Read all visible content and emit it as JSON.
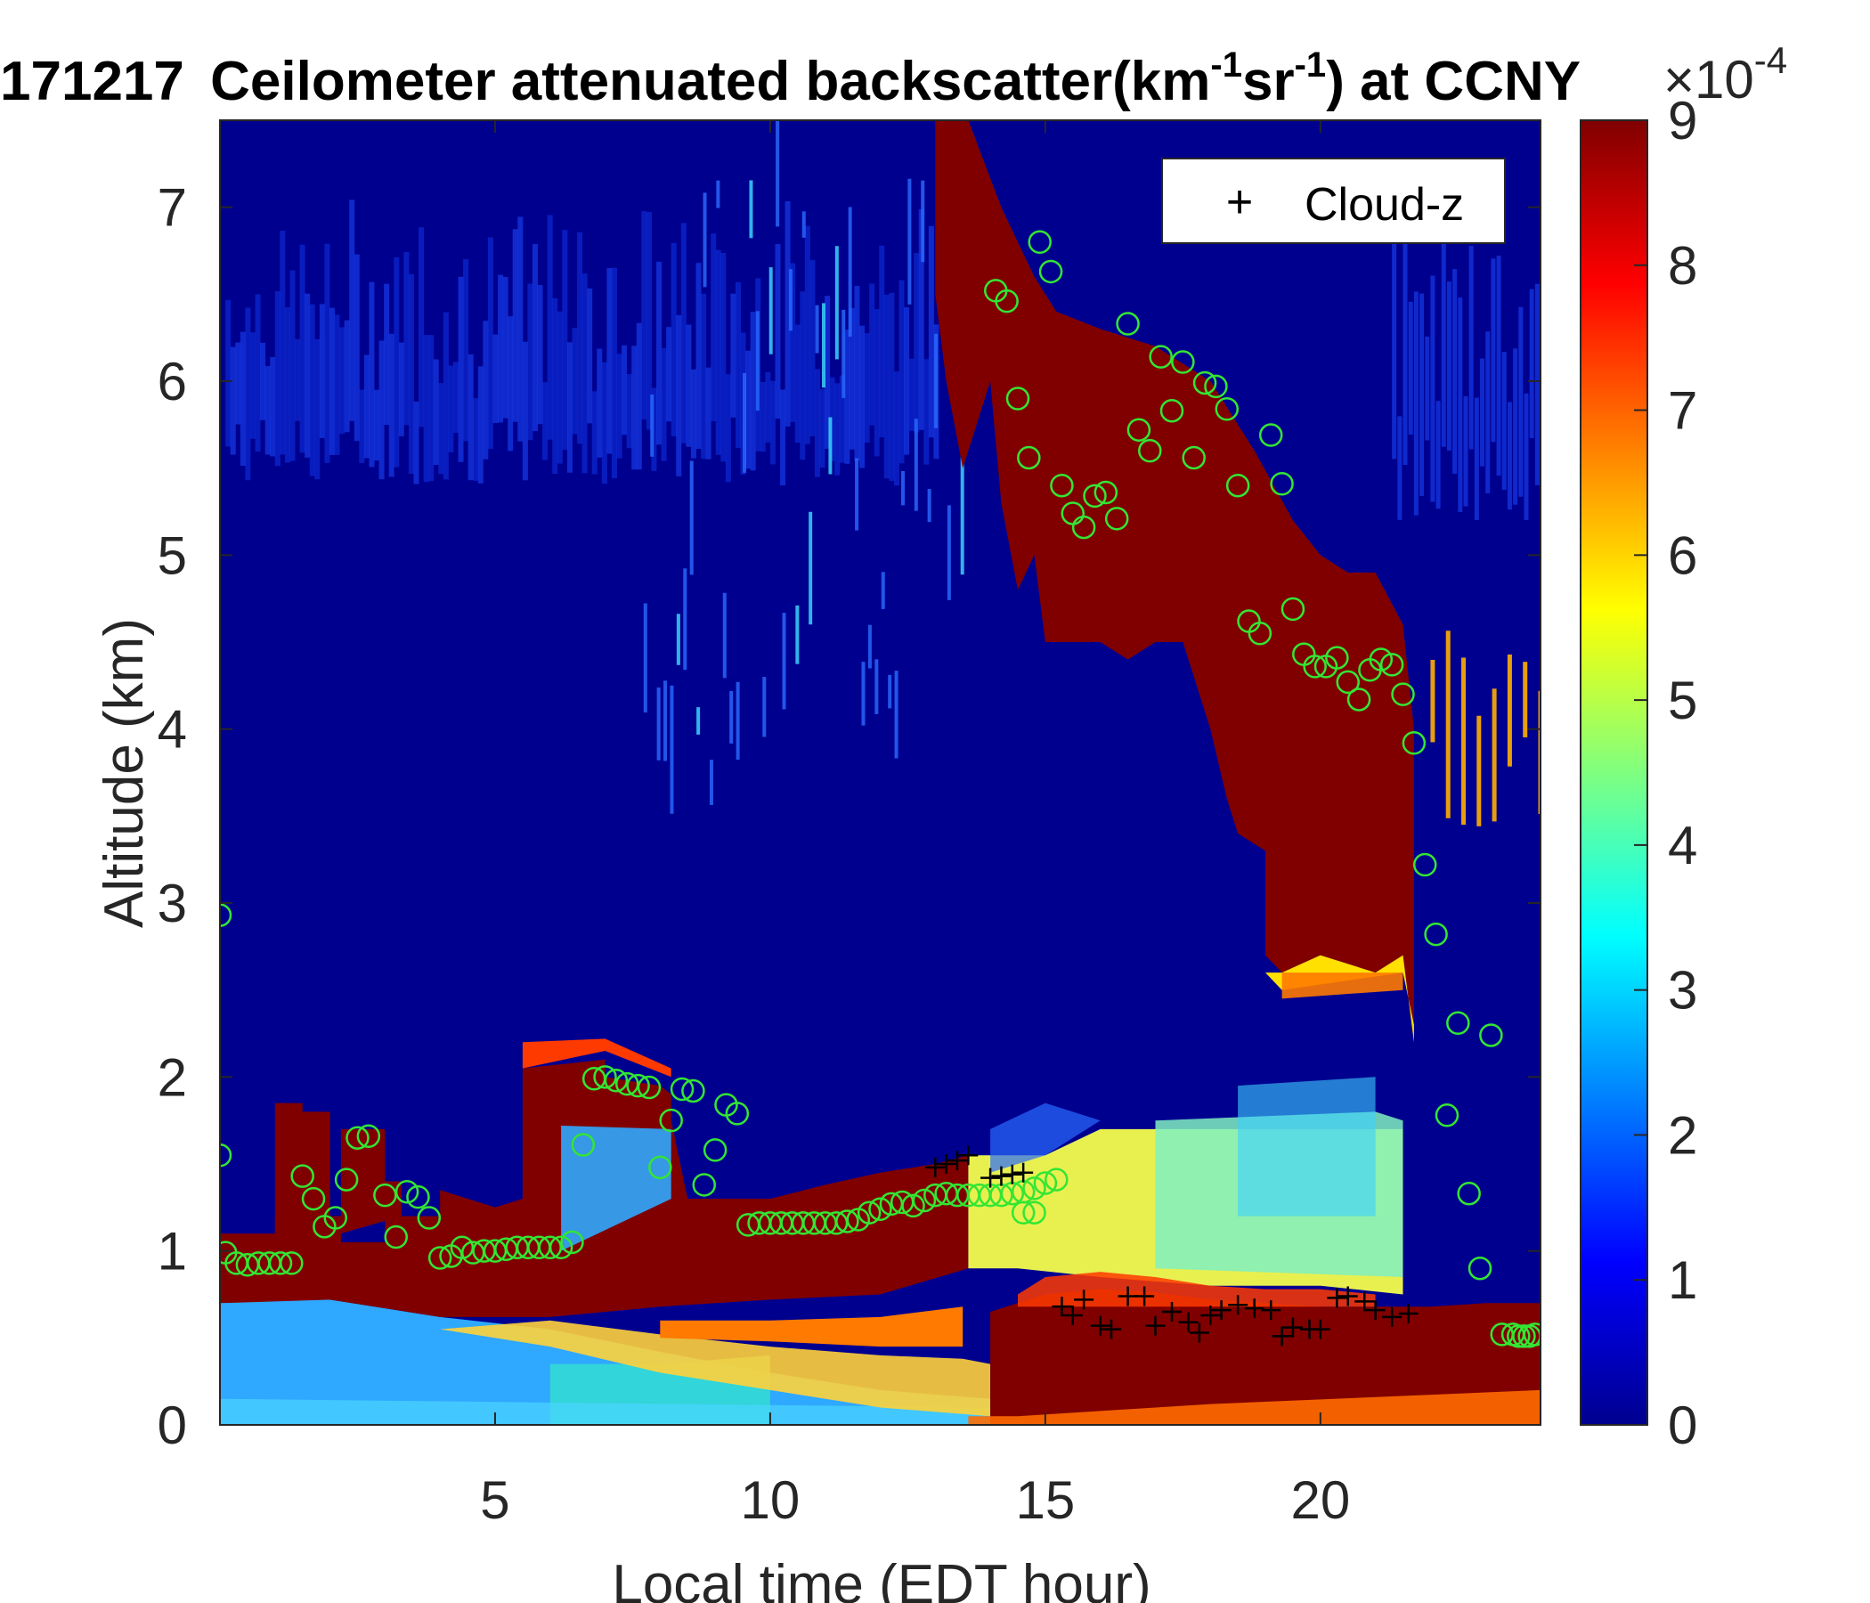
{
  "chart_data": {
    "type": "heatmap",
    "title": "171217 Ceilometer attenuated backscatter(km^{-1}sr^{-1}) at CCNY",
    "title_parts": {
      "date": "171217",
      "main": "Ceilometer attenuated backscatter(km",
      "exp1": "-1",
      "mid": "sr",
      "exp2": "-1",
      "tail": ") at CCNY"
    },
    "xlabel": "Local time (EDT hour)",
    "ylabel": "Altitude (km)",
    "xlim": [
      0,
      24
    ],
    "ylim": [
      0,
      7.5
    ],
    "xticks": [
      5,
      10,
      15,
      20
    ],
    "yticks": [
      0,
      1,
      2,
      3,
      4,
      5,
      6,
      7
    ],
    "colorbar": {
      "colormap": "jet",
      "range": [
        0,
        9
      ],
      "ticks": [
        0,
        1,
        2,
        3,
        4,
        5,
        6,
        7,
        8,
        9
      ],
      "exponent_label": "×10",
      "exponent_power": "-4"
    },
    "legend": {
      "placement": "top-right",
      "entries": [
        {
          "marker": "+",
          "label": "Cloud-z"
        }
      ]
    },
    "cloud_z": [
      {
        "x": 13.0,
        "y": 1.48
      },
      {
        "x": 13.2,
        "y": 1.5
      },
      {
        "x": 13.4,
        "y": 1.52
      },
      {
        "x": 13.6,
        "y": 1.55
      },
      {
        "x": 14.0,
        "y": 1.42
      },
      {
        "x": 14.2,
        "y": 1.43
      },
      {
        "x": 14.4,
        "y": 1.44
      },
      {
        "x": 14.6,
        "y": 1.45
      },
      {
        "x": 15.3,
        "y": 0.68
      },
      {
        "x": 15.5,
        "y": 0.63
      },
      {
        "x": 15.7,
        "y": 0.72
      },
      {
        "x": 16.0,
        "y": 0.57
      },
      {
        "x": 16.2,
        "y": 0.55
      },
      {
        "x": 16.5,
        "y": 0.74
      },
      {
        "x": 16.8,
        "y": 0.74
      },
      {
        "x": 17.0,
        "y": 0.57
      },
      {
        "x": 17.3,
        "y": 0.65
      },
      {
        "x": 17.6,
        "y": 0.59
      },
      {
        "x": 17.8,
        "y": 0.53
      },
      {
        "x": 18.0,
        "y": 0.63
      },
      {
        "x": 18.2,
        "y": 0.66
      },
      {
        "x": 18.5,
        "y": 0.69
      },
      {
        "x": 18.8,
        "y": 0.67
      },
      {
        "x": 19.1,
        "y": 0.66
      },
      {
        "x": 19.3,
        "y": 0.51
      },
      {
        "x": 19.5,
        "y": 0.56
      },
      {
        "x": 19.8,
        "y": 0.55
      },
      {
        "x": 20.0,
        "y": 0.55
      },
      {
        "x": 20.3,
        "y": 0.73
      },
      {
        "x": 20.5,
        "y": 0.74
      },
      {
        "x": 20.8,
        "y": 0.71
      },
      {
        "x": 21.0,
        "y": 0.66
      },
      {
        "x": 21.3,
        "y": 0.62
      },
      {
        "x": 21.6,
        "y": 0.64
      }
    ],
    "circles": [
      {
        "x": 0.1,
        "y": 0.99
      },
      {
        "x": 0.3,
        "y": 0.93
      },
      {
        "x": 0.5,
        "y": 0.92
      },
      {
        "x": 0.7,
        "y": 0.93
      },
      {
        "x": 0.9,
        "y": 0.93
      },
      {
        "x": 1.1,
        "y": 0.93
      },
      {
        "x": 1.3,
        "y": 0.93
      },
      {
        "x": 1.5,
        "y": 1.43
      },
      {
        "x": 1.7,
        "y": 1.3
      },
      {
        "x": 1.9,
        "y": 1.14
      },
      {
        "x": 2.1,
        "y": 1.19
      },
      {
        "x": 2.3,
        "y": 1.41
      },
      {
        "x": 2.5,
        "y": 1.65
      },
      {
        "x": 2.7,
        "y": 1.66
      },
      {
        "x": 3.0,
        "y": 1.32
      },
      {
        "x": 3.2,
        "y": 1.08
      },
      {
        "x": 3.4,
        "y": 1.34
      },
      {
        "x": 3.6,
        "y": 1.31
      },
      {
        "x": 3.8,
        "y": 1.19
      },
      {
        "x": 4.0,
        "y": 0.96
      },
      {
        "x": 4.2,
        "y": 0.97
      },
      {
        "x": 4.4,
        "y": 1.02
      },
      {
        "x": 4.6,
        "y": 0.99
      },
      {
        "x": 4.8,
        "y": 1.0
      },
      {
        "x": 5.0,
        "y": 1.0
      },
      {
        "x": 5.2,
        "y": 1.01
      },
      {
        "x": 5.4,
        "y": 1.02
      },
      {
        "x": 5.6,
        "y": 1.02
      },
      {
        "x": 5.8,
        "y": 1.02
      },
      {
        "x": 6.0,
        "y": 1.02
      },
      {
        "x": 6.2,
        "y": 1.02
      },
      {
        "x": 6.4,
        "y": 1.05
      },
      {
        "x": 6.6,
        "y": 1.61
      },
      {
        "x": 6.8,
        "y": 1.99
      },
      {
        "x": 7.0,
        "y": 2.0
      },
      {
        "x": 7.2,
        "y": 1.98
      },
      {
        "x": 7.4,
        "y": 1.96
      },
      {
        "x": 7.6,
        "y": 1.95
      },
      {
        "x": 7.8,
        "y": 1.94
      },
      {
        "x": 8.0,
        "y": 1.48
      },
      {
        "x": 8.2,
        "y": 1.75
      },
      {
        "x": 8.4,
        "y": 1.93
      },
      {
        "x": 8.6,
        "y": 1.92
      },
      {
        "x": 8.8,
        "y": 1.38
      },
      {
        "x": 9.0,
        "y": 1.58
      },
      {
        "x": 9.2,
        "y": 1.84
      },
      {
        "x": 9.4,
        "y": 1.79
      },
      {
        "x": 9.6,
        "y": 1.15
      },
      {
        "x": 9.8,
        "y": 1.16
      },
      {
        "x": 10.0,
        "y": 1.16
      },
      {
        "x": 10.2,
        "y": 1.16
      },
      {
        "x": 10.4,
        "y": 1.16
      },
      {
        "x": 10.6,
        "y": 1.16
      },
      {
        "x": 10.8,
        "y": 1.16
      },
      {
        "x": 11.0,
        "y": 1.16
      },
      {
        "x": 11.2,
        "y": 1.16
      },
      {
        "x": 11.4,
        "y": 1.17
      },
      {
        "x": 11.6,
        "y": 1.18
      },
      {
        "x": 11.8,
        "y": 1.22
      },
      {
        "x": 12.0,
        "y": 1.24
      },
      {
        "x": 12.2,
        "y": 1.27
      },
      {
        "x": 12.4,
        "y": 1.28
      },
      {
        "x": 12.6,
        "y": 1.26
      },
      {
        "x": 12.8,
        "y": 1.29
      },
      {
        "x": 13.0,
        "y": 1.32
      },
      {
        "x": 13.2,
        "y": 1.33
      },
      {
        "x": 13.4,
        "y": 1.32
      },
      {
        "x": 13.6,
        "y": 1.32
      },
      {
        "x": 13.8,
        "y": 1.32
      },
      {
        "x": 14.0,
        "y": 1.32
      },
      {
        "x": 14.2,
        "y": 1.32
      },
      {
        "x": 14.4,
        "y": 1.33
      },
      {
        "x": 14.6,
        "y": 1.34
      },
      {
        "x": 14.8,
        "y": 1.36
      },
      {
        "x": 15.0,
        "y": 1.39
      },
      {
        "x": 15.2,
        "y": 1.41
      },
      {
        "x": 14.6,
        "y": 1.22
      },
      {
        "x": 14.8,
        "y": 1.22
      },
      {
        "x": 14.1,
        "y": 6.52
      },
      {
        "x": 14.3,
        "y": 6.46
      },
      {
        "x": 14.5,
        "y": 5.9
      },
      {
        "x": 14.7,
        "y": 5.56
      },
      {
        "x": 14.9,
        "y": 6.8
      },
      {
        "x": 15.1,
        "y": 6.63
      },
      {
        "x": 15.3,
        "y": 5.4
      },
      {
        "x": 15.5,
        "y": 5.24
      },
      {
        "x": 15.7,
        "y": 5.16
      },
      {
        "x": 15.9,
        "y": 5.34
      },
      {
        "x": 16.1,
        "y": 5.36
      },
      {
        "x": 16.3,
        "y": 5.21
      },
      {
        "x": 16.5,
        "y": 6.33
      },
      {
        "x": 16.7,
        "y": 5.72
      },
      {
        "x": 16.9,
        "y": 5.6
      },
      {
        "x": 17.1,
        "y": 6.14
      },
      {
        "x": 17.3,
        "y": 5.83
      },
      {
        "x": 17.5,
        "y": 6.11
      },
      {
        "x": 17.7,
        "y": 5.56
      },
      {
        "x": 17.9,
        "y": 5.99
      },
      {
        "x": 18.1,
        "y": 5.97
      },
      {
        "x": 18.3,
        "y": 5.84
      },
      {
        "x": 18.5,
        "y": 5.4
      },
      {
        "x": 18.7,
        "y": 4.62
      },
      {
        "x": 18.9,
        "y": 4.55
      },
      {
        "x": 19.1,
        "y": 5.69
      },
      {
        "x": 19.3,
        "y": 5.41
      },
      {
        "x": 19.5,
        "y": 4.69
      },
      {
        "x": 19.7,
        "y": 4.43
      },
      {
        "x": 19.9,
        "y": 4.36
      },
      {
        "x": 20.1,
        "y": 4.36
      },
      {
        "x": 20.3,
        "y": 4.41
      },
      {
        "x": 20.5,
        "y": 4.27
      },
      {
        "x": 20.7,
        "y": 4.17
      },
      {
        "x": 20.9,
        "y": 4.34
      },
      {
        "x": 21.1,
        "y": 4.4
      },
      {
        "x": 21.3,
        "y": 4.37
      },
      {
        "x": 21.5,
        "y": 4.2
      },
      {
        "x": 21.7,
        "y": 3.92
      },
      {
        "x": 21.9,
        "y": 3.22
      },
      {
        "x": 22.1,
        "y": 2.82
      },
      {
        "x": 22.3,
        "y": 1.78
      },
      {
        "x": 22.5,
        "y": 2.31
      },
      {
        "x": 22.7,
        "y": 1.33
      },
      {
        "x": 22.9,
        "y": 0.9
      },
      {
        "x": 23.1,
        "y": 2.24
      },
      {
        "x": 23.3,
        "y": 0.52
      },
      {
        "x": 23.5,
        "y": 0.52
      },
      {
        "x": 23.6,
        "y": 0.51
      },
      {
        "x": 23.7,
        "y": 0.51
      },
      {
        "x": 23.8,
        "y": 0.51
      },
      {
        "x": 23.9,
        "y": 0.52
      },
      {
        "x": 0.0,
        "y": 1.55
      },
      {
        "x": 0.0,
        "y": 2.93
      }
    ]
  },
  "colors": {
    "background": "#00008F",
    "cloud_marker": "#000000",
    "circle_marker": "#33E633",
    "axis": "#262626"
  }
}
